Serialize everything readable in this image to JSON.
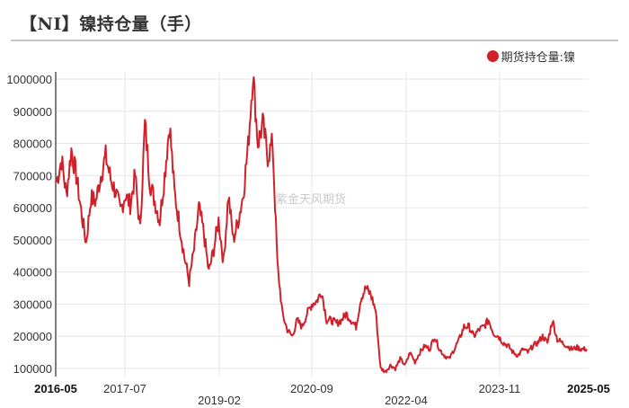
{
  "title": "【NI】镍持仓量（手）",
  "legend": {
    "label": "期货持仓量:镍",
    "color": "#d0202a"
  },
  "watermark": "紫金天风期货",
  "colors": {
    "line": "#d0202a",
    "grid": "#e6e6e6",
    "axis": "#555555",
    "title_rule": "#c8c8c8"
  },
  "chart_data": {
    "type": "line",
    "title": "【NI】镍持仓量（手）",
    "xlabel": "",
    "ylabel": "",
    "ylim": [
      100000,
      1000000
    ],
    "y_ticks": [
      100000,
      200000,
      300000,
      400000,
      500000,
      600000,
      700000,
      800000,
      900000,
      1000000
    ],
    "x_ticks": [
      {
        "label": "2016-05",
        "bold": true,
        "row": 1
      },
      {
        "label": "2017-07",
        "bold": false,
        "row": 1
      },
      {
        "label": "2019-02",
        "bold": false,
        "row": 2
      },
      {
        "label": "2020-09",
        "bold": false,
        "row": 1
      },
      {
        "label": "2022-04",
        "bold": false,
        "row": 2
      },
      {
        "label": "2023-11",
        "bold": false,
        "row": 1
      },
      {
        "label": "2025-05",
        "bold": true,
        "row": 1
      }
    ],
    "grid": true,
    "legend_position": "top-right",
    "series": [
      {
        "name": "期货持仓量:镍",
        "x": [
          "2016-05",
          "2016-06",
          "2016-07",
          "2016-08",
          "2016-09",
          "2016-10",
          "2016-11",
          "2016-12",
          "2017-01",
          "2017-02",
          "2017-03",
          "2017-04",
          "2017-05",
          "2017-06",
          "2017-07",
          "2017-08",
          "2017-09",
          "2017-10",
          "2017-11",
          "2017-12",
          "2018-01",
          "2018-02",
          "2018-03",
          "2018-04",
          "2018-05",
          "2018-06",
          "2018-07",
          "2018-08",
          "2018-09",
          "2018-10",
          "2018-11",
          "2018-12",
          "2019-01",
          "2019-02",
          "2019-03",
          "2019-04",
          "2019-05",
          "2019-06",
          "2019-07",
          "2019-08",
          "2019-09",
          "2019-10",
          "2019-11",
          "2019-12",
          "2020-01",
          "2020-02",
          "2020-03",
          "2020-04",
          "2020-05",
          "2020-06",
          "2020-07",
          "2020-08",
          "2020-09",
          "2020-10",
          "2020-11",
          "2020-12",
          "2021-01",
          "2021-02",
          "2021-03",
          "2021-04",
          "2021-05",
          "2021-06",
          "2021-07",
          "2021-08",
          "2021-09",
          "2021-10",
          "2021-11",
          "2021-12",
          "2022-01",
          "2022-02",
          "2022-03",
          "2022-04",
          "2022-05",
          "2022-06",
          "2022-07",
          "2022-08",
          "2022-09",
          "2022-10",
          "2022-11",
          "2022-12",
          "2023-01",
          "2023-02",
          "2023-03",
          "2023-04",
          "2023-05",
          "2023-06",
          "2023-07",
          "2023-08",
          "2023-09",
          "2023-10",
          "2023-11",
          "2023-12",
          "2024-01",
          "2024-02",
          "2024-03",
          "2024-04",
          "2024-05",
          "2024-06",
          "2024-07",
          "2024-08",
          "2024-09",
          "2024-10",
          "2024-11",
          "2024-12",
          "2025-01",
          "2025-02",
          "2025-03",
          "2025-04",
          "2025-05"
        ],
        "values": [
          680000,
          750000,
          640000,
          780000,
          700000,
          590000,
          490000,
          630000,
          620000,
          700000,
          760000,
          690000,
          650000,
          590000,
          640000,
          610000,
          700000,
          530000,
          860000,
          680000,
          620000,
          560000,
          700000,
          860000,
          650000,
          550000,
          450000,
          370000,
          470000,
          600000,
          520000,
          400000,
          470000,
          560000,
          430000,
          640000,
          500000,
          560000,
          640000,
          790000,
          1020000,
          800000,
          860000,
          760000,
          800000,
          420000,
          270000,
          220000,
          200000,
          250000,
          230000,
          270000,
          300000,
          310000,
          340000,
          250000,
          250000,
          240000,
          250000,
          270000,
          250000,
          230000,
          320000,
          350000,
          330000,
          280000,
          100000,
          90000,
          110000,
          100000,
          130000,
          110000,
          150000,
          120000,
          150000,
          170000,
          160000,
          200000,
          160000,
          140000,
          130000,
          160000,
          190000,
          230000,
          230000,
          200000,
          220000,
          230000,
          250000,
          210000,
          200000,
          180000,
          170000,
          150000,
          140000,
          160000,
          150000,
          170000,
          180000,
          200000,
          180000,
          250000,
          190000,
          180000,
          170000,
          160000,
          165000,
          160000,
          160000
        ]
      }
    ]
  }
}
